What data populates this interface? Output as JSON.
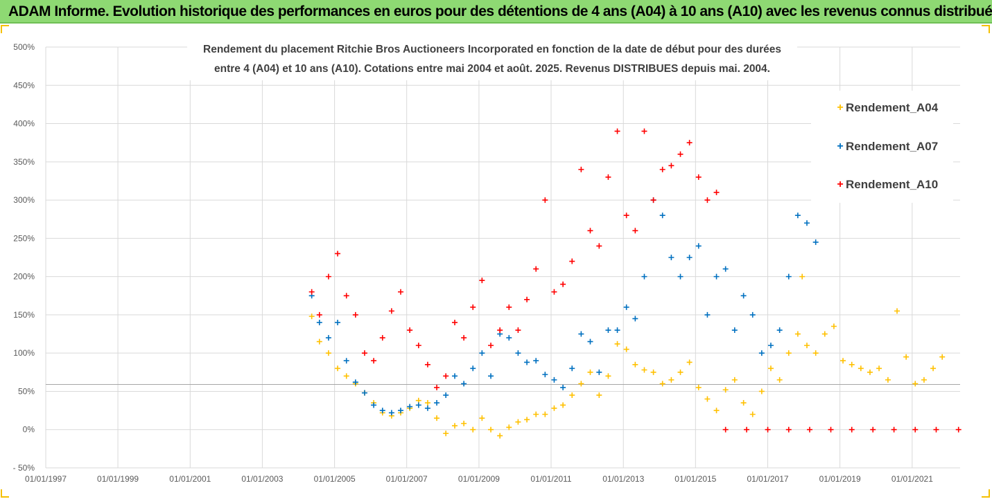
{
  "header": {
    "title": "ADAM Informe. Evolution historique des performances en euros pour des détentions de 4 ans (A04) à 10 ans (A10) avec les revenus connus distribués"
  },
  "colors": {
    "banner_background": "#8ed973",
    "series_A04": "#ffc000",
    "series_A07": "#0070c0",
    "series_A10": "#ff0000",
    "gridline": "#d9d9d9"
  },
  "chart_data": {
    "type": "scatter",
    "title_lines": [
      "Rendement du placement Ritchie Bros Auctioneers Incorporated en fonction de la date de début pour des durées",
      "entre 4 (A04) et 10 ans (A10). Cotations entre mai 2004 et août. 2025. Revenus DISTRIBUES depuis mai. 2004."
    ],
    "x_axis": {
      "type": "date",
      "range": [
        "1997-01-01",
        "2022-05-01"
      ],
      "tick_labels": [
        "01/01/1997",
        "01/01/1999",
        "01/01/2001",
        "01/01/2003",
        "01/01/2005",
        "01/01/2007",
        "01/01/2009",
        "01/01/2011",
        "01/01/2013",
        "01/01/2015",
        "01/01/2017",
        "01/01/2019",
        "01/01/2021"
      ],
      "gridlines": true
    },
    "y_axis": {
      "unit": "%",
      "range": [
        -50,
        500
      ],
      "tick_labels": [
        "- 50%",
        "0%",
        "50%",
        "100%",
        "150%",
        "200%",
        "250%",
        "300%",
        "350%",
        "400%",
        "450%",
        "500%"
      ],
      "gridlines": true
    },
    "reference_line": {
      "y": 59
    },
    "legend": {
      "position": "right",
      "items": [
        "Rendement_A04",
        "Rendement_A07",
        "Rendement_A10"
      ]
    },
    "marker": "+",
    "series": [
      {
        "name": "Rendement_A04",
        "color": "#ffc000",
        "points": [
          [
            "2004-05-15",
            148
          ],
          [
            "2004-08-01",
            115
          ],
          [
            "2004-11-01",
            100
          ],
          [
            "2005-02-01",
            80
          ],
          [
            "2005-05-01",
            70
          ],
          [
            "2005-08-01",
            60
          ],
          [
            "2005-11-01",
            48
          ],
          [
            "2006-02-01",
            35
          ],
          [
            "2006-05-01",
            22
          ],
          [
            "2006-08-01",
            18
          ],
          [
            "2006-11-01",
            22
          ],
          [
            "2007-02-01",
            28
          ],
          [
            "2007-05-01",
            38
          ],
          [
            "2007-08-01",
            35
          ],
          [
            "2007-11-01",
            15
          ],
          [
            "2008-02-01",
            -5
          ],
          [
            "2008-05-01",
            5
          ],
          [
            "2008-08-01",
            8
          ],
          [
            "2008-11-01",
            0
          ],
          [
            "2009-02-01",
            15
          ],
          [
            "2009-05-01",
            0
          ],
          [
            "2009-08-01",
            -8
          ],
          [
            "2009-11-01",
            3
          ],
          [
            "2010-02-01",
            10
          ],
          [
            "2010-05-01",
            13
          ],
          [
            "2010-08-01",
            20
          ],
          [
            "2010-11-01",
            20
          ],
          [
            "2011-02-01",
            28
          ],
          [
            "2011-05-01",
            32
          ],
          [
            "2011-08-01",
            45
          ],
          [
            "2011-11-01",
            60
          ],
          [
            "2012-02-01",
            75
          ],
          [
            "2012-05-01",
            45
          ],
          [
            "2012-08-01",
            70
          ],
          [
            "2012-11-01",
            112
          ],
          [
            "2013-02-01",
            105
          ],
          [
            "2013-05-01",
            85
          ],
          [
            "2013-08-01",
            78
          ],
          [
            "2013-11-01",
            75
          ],
          [
            "2014-02-01",
            60
          ],
          [
            "2014-05-01",
            65
          ],
          [
            "2014-08-01",
            75
          ],
          [
            "2014-11-01",
            88
          ],
          [
            "2015-02-01",
            55
          ],
          [
            "2015-05-01",
            40
          ],
          [
            "2015-08-01",
            25
          ],
          [
            "2015-11-01",
            52
          ],
          [
            "2016-02-01",
            65
          ],
          [
            "2016-05-01",
            35
          ],
          [
            "2016-08-01",
            20
          ],
          [
            "2016-11-01",
            50
          ],
          [
            "2017-02-01",
            80
          ],
          [
            "2017-05-01",
            65
          ],
          [
            "2017-08-01",
            100
          ],
          [
            "2017-11-01",
            125
          ],
          [
            "2017-12-15",
            200
          ],
          [
            "2018-02-01",
            110
          ],
          [
            "2018-05-01",
            100
          ],
          [
            "2018-08-01",
            125
          ],
          [
            "2018-11-01",
            135
          ],
          [
            "2019-02-01",
            90
          ],
          [
            "2019-05-01",
            85
          ],
          [
            "2019-08-01",
            80
          ],
          [
            "2019-11-01",
            75
          ],
          [
            "2020-02-01",
            80
          ],
          [
            "2020-05-01",
            65
          ],
          [
            "2020-08-01",
            155
          ],
          [
            "2020-11-01",
            95
          ],
          [
            "2021-02-01",
            60
          ],
          [
            "2021-05-01",
            65
          ],
          [
            "2021-08-01",
            80
          ],
          [
            "2021-11-01",
            95
          ]
        ]
      },
      {
        "name": "Rendement_A07",
        "color": "#0070c0",
        "points": [
          [
            "2004-05-15",
            175
          ],
          [
            "2004-08-01",
            140
          ],
          [
            "2004-11-01",
            120
          ],
          [
            "2005-02-01",
            140
          ],
          [
            "2005-05-01",
            90
          ],
          [
            "2005-08-01",
            62
          ],
          [
            "2005-11-01",
            48
          ],
          [
            "2006-02-01",
            32
          ],
          [
            "2006-05-01",
            25
          ],
          [
            "2006-08-01",
            22
          ],
          [
            "2006-11-01",
            25
          ],
          [
            "2007-02-01",
            30
          ],
          [
            "2007-05-01",
            32
          ],
          [
            "2007-08-01",
            28
          ],
          [
            "2007-11-01",
            35
          ],
          [
            "2008-02-01",
            45
          ],
          [
            "2008-05-01",
            70
          ],
          [
            "2008-08-01",
            60
          ],
          [
            "2008-11-01",
            80
          ],
          [
            "2009-02-01",
            100
          ],
          [
            "2009-05-01",
            70
          ],
          [
            "2009-08-01",
            125
          ],
          [
            "2009-11-01",
            120
          ],
          [
            "2010-02-01",
            100
          ],
          [
            "2010-05-01",
            88
          ],
          [
            "2010-08-01",
            90
          ],
          [
            "2010-11-01",
            72
          ],
          [
            "2011-02-01",
            65
          ],
          [
            "2011-05-01",
            55
          ],
          [
            "2011-08-01",
            80
          ],
          [
            "2011-11-01",
            125
          ],
          [
            "2012-02-01",
            115
          ],
          [
            "2012-05-01",
            75
          ],
          [
            "2012-08-01",
            130
          ],
          [
            "2012-11-01",
            130
          ],
          [
            "2013-02-01",
            160
          ],
          [
            "2013-05-01",
            145
          ],
          [
            "2013-08-01",
            200
          ],
          [
            "2013-11-01",
            300
          ],
          [
            "2014-02-01",
            280
          ],
          [
            "2014-05-01",
            225
          ],
          [
            "2014-08-01",
            200
          ],
          [
            "2014-11-01",
            225
          ],
          [
            "2015-02-01",
            240
          ],
          [
            "2015-05-01",
            150
          ],
          [
            "2015-08-01",
            200
          ],
          [
            "2015-11-01",
            210
          ],
          [
            "2016-02-01",
            130
          ],
          [
            "2016-05-01",
            175
          ],
          [
            "2016-08-01",
            150
          ],
          [
            "2016-11-01",
            100
          ],
          [
            "2017-02-01",
            110
          ],
          [
            "2017-05-01",
            130
          ],
          [
            "2017-08-01",
            200
          ],
          [
            "2017-11-01",
            280
          ],
          [
            "2018-02-01",
            270
          ],
          [
            "2018-05-01",
            245
          ]
        ]
      },
      {
        "name": "Rendement_A10",
        "color": "#ff0000",
        "points": [
          [
            "2004-05-15",
            180
          ],
          [
            "2004-08-01",
            150
          ],
          [
            "2004-11-01",
            200
          ],
          [
            "2005-02-01",
            230
          ],
          [
            "2005-05-01",
            175
          ],
          [
            "2005-08-01",
            150
          ],
          [
            "2005-11-01",
            100
          ],
          [
            "2006-02-01",
            90
          ],
          [
            "2006-05-01",
            120
          ],
          [
            "2006-08-01",
            155
          ],
          [
            "2006-11-01",
            180
          ],
          [
            "2007-02-01",
            130
          ],
          [
            "2007-05-01",
            110
          ],
          [
            "2007-08-01",
            85
          ],
          [
            "2007-11-01",
            55
          ],
          [
            "2008-02-01",
            70
          ],
          [
            "2008-05-01",
            140
          ],
          [
            "2008-08-01",
            120
          ],
          [
            "2008-11-01",
            160
          ],
          [
            "2009-02-01",
            195
          ],
          [
            "2009-05-01",
            110
          ],
          [
            "2009-08-01",
            130
          ],
          [
            "2009-11-01",
            160
          ],
          [
            "2010-02-01",
            130
          ],
          [
            "2010-05-01",
            170
          ],
          [
            "2010-08-01",
            210
          ],
          [
            "2010-11-01",
            300
          ],
          [
            "2011-02-01",
            180
          ],
          [
            "2011-05-01",
            190
          ],
          [
            "2011-08-01",
            220
          ],
          [
            "2011-11-01",
            340
          ],
          [
            "2012-02-01",
            260
          ],
          [
            "2012-05-01",
            240
          ],
          [
            "2012-08-01",
            330
          ],
          [
            "2012-11-01",
            390
          ],
          [
            "2013-02-01",
            280
          ],
          [
            "2013-05-01",
            260
          ],
          [
            "2013-08-01",
            390
          ],
          [
            "2013-11-01",
            300
          ],
          [
            "2014-02-01",
            340
          ],
          [
            "2014-05-01",
            345
          ],
          [
            "2014-08-01",
            360
          ],
          [
            "2014-11-01",
            375
          ],
          [
            "2015-02-01",
            330
          ],
          [
            "2015-05-01",
            300
          ],
          [
            "2015-08-01",
            310
          ],
          [
            "2015-11-01",
            0
          ],
          [
            "2016-06-01",
            0
          ],
          [
            "2017-01-01",
            0
          ],
          [
            "2017-08-01",
            0
          ],
          [
            "2018-03-01",
            0
          ],
          [
            "2018-10-01",
            0
          ],
          [
            "2019-05-01",
            0
          ],
          [
            "2019-12-01",
            0
          ],
          [
            "2020-07-01",
            0
          ],
          [
            "2021-02-01",
            0
          ],
          [
            "2021-09-01",
            0
          ],
          [
            "2022-04-15",
            0
          ]
        ]
      }
    ]
  }
}
